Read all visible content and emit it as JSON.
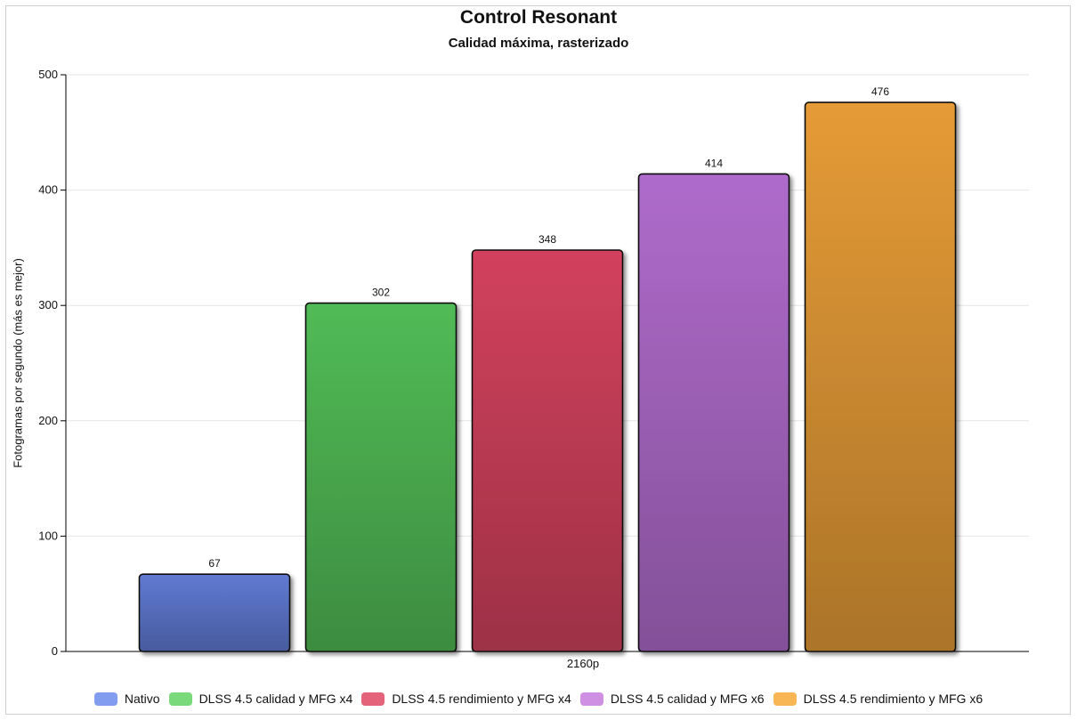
{
  "chart_data": {
    "type": "bar",
    "title": "Control Resonant",
    "subtitle": "Calidad máxima, rasterizado",
    "ylabel": "Fotogramas por segundo (más es mejor)",
    "categories": [
      "2160p"
    ],
    "ylim": [
      0,
      500
    ],
    "yticks": [
      0,
      100,
      200,
      300,
      400,
      500
    ],
    "grid": true,
    "legend_position": "bottom",
    "series": [
      {
        "name": "Nativo",
        "values": [
          67
        ],
        "color": "#5a72c4",
        "legend_color": "#829df0"
      },
      {
        "name": "DLSS 4.5 calidad y MFG x4",
        "values": [
          302
        ],
        "color": "#4caf50",
        "legend_color": "#7ad97a"
      },
      {
        "name": "DLSS 4.5 rendimiento y MFG x4",
        "values": [
          348
        ],
        "color": "#c43d57",
        "legend_color": "#e5637a"
      },
      {
        "name": "DLSS 4.5 calidad y MFG x6",
        "values": [
          414
        ],
        "color": "#a464be",
        "legend_color": "#cf8fe3"
      },
      {
        "name": "DLSS 4.5 rendimiento y MFG x6",
        "values": [
          476
        ],
        "color": "#d69133",
        "legend_color": "#f8b654"
      }
    ]
  }
}
